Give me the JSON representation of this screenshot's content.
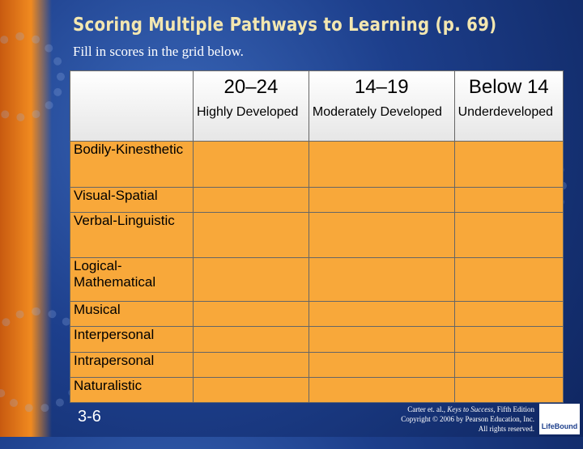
{
  "title": "Scoring Multiple Pathways to Learning (p. 69)",
  "subtitle": "Fill in scores in the grid below.",
  "table": {
    "header": [
      {
        "range": "20–24",
        "label": "Highly Developed"
      },
      {
        "range": "14–19",
        "label": "Moderately Developed"
      },
      {
        "range": "Below 14",
        "label": "Underdeveloped"
      }
    ],
    "rows": [
      "Bodily-Kinesthetic",
      "Visual-Spatial",
      "Verbal-Linguistic",
      "Logical-Mathematical",
      "Musical",
      "Interpersonal",
      "Intrapersonal",
      "Naturalistic"
    ]
  },
  "page_number": "3-6",
  "credit": {
    "authors": "Carter et. al.,",
    "book": "Keys to Success",
    "edition": ", Fifth Edition",
    "copyright": "Copyright © 2006 by Pearson Education, Inc.",
    "rights": "All rights reserved."
  },
  "logo": "LifeBound"
}
